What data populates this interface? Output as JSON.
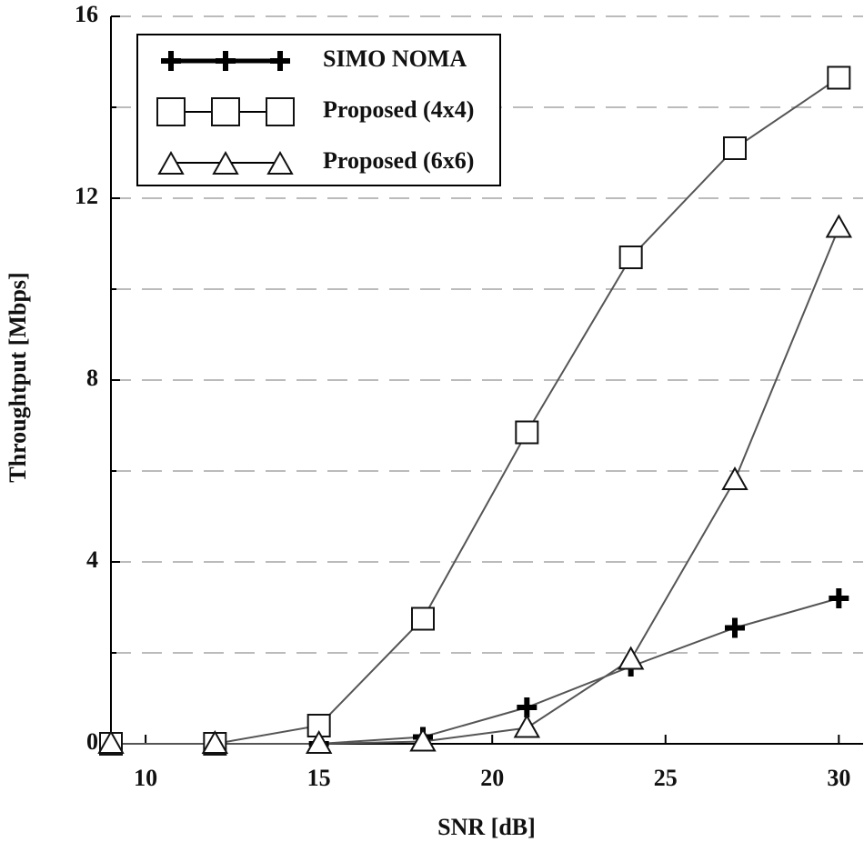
{
  "chart_data": {
    "type": "line",
    "xlabel": "SNR [dB]",
    "ylabel": "Throughtput [Mbps]",
    "x": [
      9,
      12,
      15,
      18,
      21,
      24,
      27,
      30
    ],
    "series": [
      {
        "name": "SIMO NOMA",
        "color": "#000000",
        "marker": "plus",
        "values": [
          0,
          0,
          0,
          0.15,
          0.8,
          1.7,
          2.55,
          3.2
        ]
      },
      {
        "name": "Proposed (4x4)",
        "color": "#000000",
        "marker": "square",
        "values": [
          0,
          0,
          0.4,
          2.75,
          6.85,
          10.7,
          13.1,
          14.65
        ]
      },
      {
        "name": "Proposed (6x6)",
        "color": "#000000",
        "marker": "triangle",
        "values": [
          0,
          0,
          0,
          0.05,
          0.35,
          1.85,
          5.8,
          11.35
        ]
      }
    ],
    "xlim": [
      9,
      30.7
    ],
    "xticks": [
      10,
      15,
      20,
      25,
      30
    ],
    "ylim": [
      0,
      16
    ],
    "yticks": [
      0,
      4,
      8,
      12,
      16
    ],
    "yminorticks": [
      2,
      6,
      10,
      14
    ],
    "grid": true,
    "legend": "upper left"
  }
}
